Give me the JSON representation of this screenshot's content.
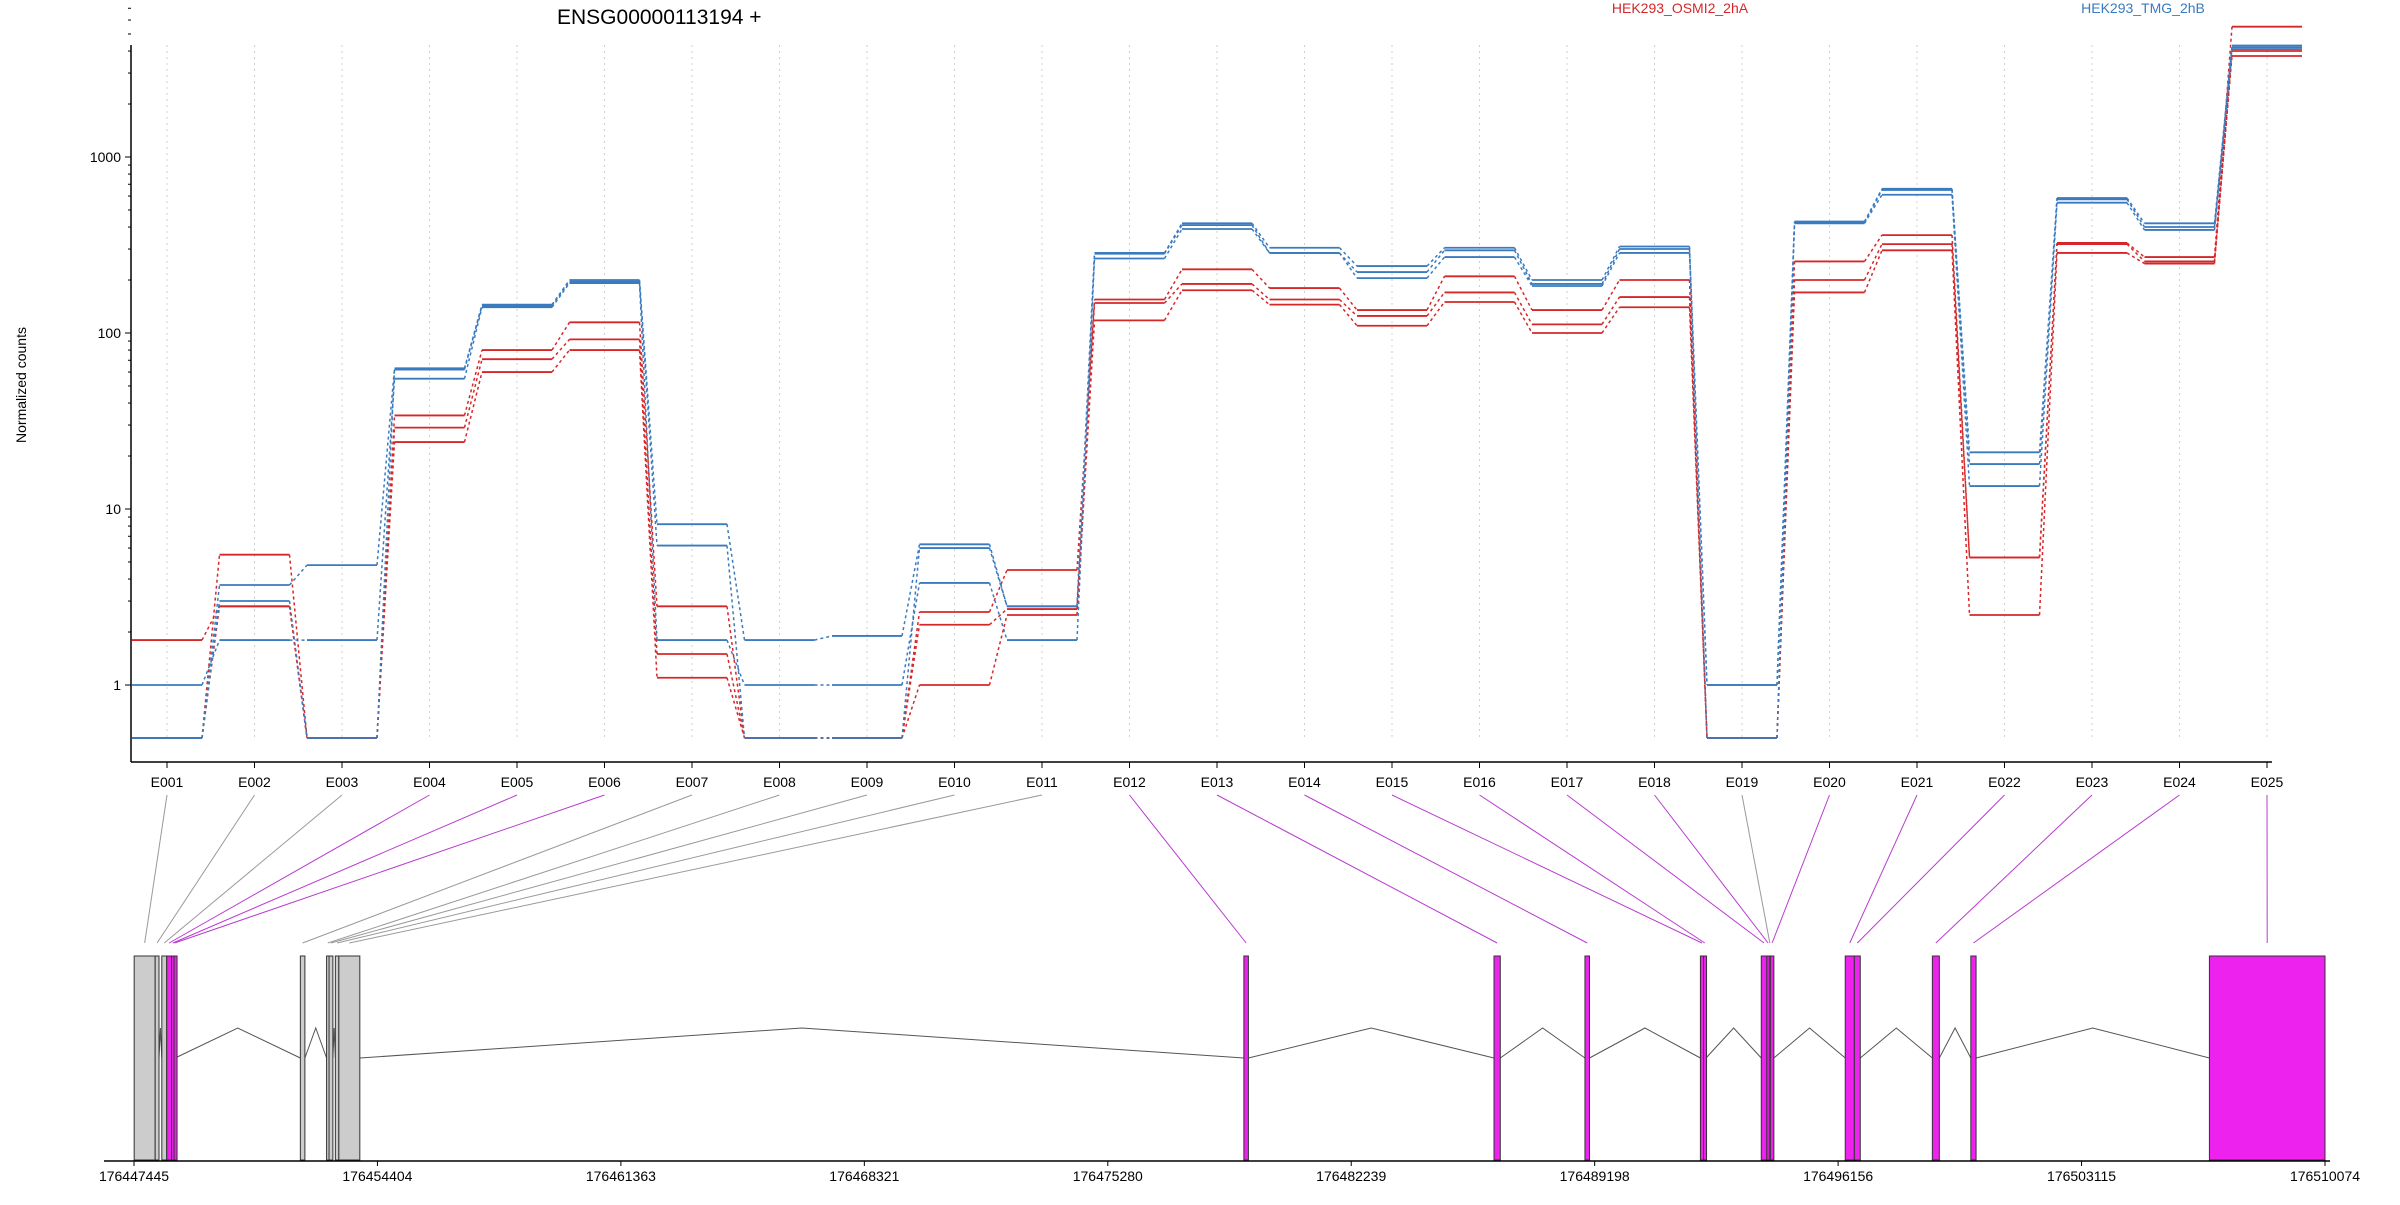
{
  "chart_data": {
    "type": "line",
    "title": "ENSG00000113194 +",
    "ylabel": "Normalized counts",
    "xlabel": "",
    "y_scale": "log",
    "y_ticks": [
      1,
      10,
      100,
      1000
    ],
    "y_tick_labels": [
      "1",
      "10",
      "100",
      "1000"
    ],
    "ylim": [
      0.5,
      8000
    ],
    "grid": "vertical dotted lines at each exon",
    "legend_position": "top-right",
    "categories": [
      "E001",
      "E002",
      "E003",
      "E004",
      "E005",
      "E006",
      "E007",
      "E008",
      "E009",
      "E010",
      "E011",
      "E012",
      "E013",
      "E014",
      "E015",
      "E016",
      "E017",
      "E018",
      "E019",
      "E020",
      "E021",
      "E022",
      "E023",
      "E024",
      "E025"
    ],
    "series": [
      {
        "group": "HEK293_OSMI2_2hA",
        "color": "#d62728",
        "values": [
          0.5,
          5.5,
          0.5,
          34,
          80,
          115,
          2.8,
          0.5,
          0.5,
          2.6,
          4.5,
          155,
          230,
          180,
          135,
          210,
          135,
          200,
          0.5,
          255,
          360,
          5.3,
          325,
          270,
          5500
        ]
      },
      {
        "group": "HEK293_OSMI2_2hA",
        "color": "#d62728",
        "values": [
          0.5,
          2.8,
          0.5,
          29,
          71,
          92,
          1.5,
          0.5,
          0.5,
          2.2,
          2.7,
          148,
          190,
          155,
          125,
          170,
          112,
          160,
          0.5,
          200,
          320,
          5.3,
          320,
          255,
          4000
        ]
      },
      {
        "group": "HEK293_OSMI2_2hA",
        "color": "#d62728",
        "values": [
          1.8,
          2.8,
          0.5,
          24,
          60,
          80,
          1.1,
          0.5,
          0.5,
          1.0,
          2.5,
          118,
          175,
          145,
          110,
          150,
          100,
          140,
          0.5,
          170,
          295,
          2.5,
          285,
          248,
          3750
        ]
      },
      {
        "group": "HEK293_TMG_2hB",
        "color": "#3a7bbf",
        "values": [
          0.5,
          3.7,
          4.8,
          63,
          145,
          200,
          8.2,
          1.8,
          1.9,
          6.3,
          2.8,
          285,
          420,
          305,
          240,
          305,
          200,
          310,
          1.0,
          430,
          660,
          21,
          585,
          420,
          4300
        ]
      },
      {
        "group": "HEK293_TMG_2hB",
        "color": "#3a7bbf",
        "values": [
          0.5,
          3.0,
          0.5,
          62,
          143,
          196,
          6.2,
          0.5,
          0.5,
          6.0,
          2.8,
          282,
          410,
          285,
          222,
          295,
          190,
          300,
          0.5,
          425,
          650,
          18,
          575,
          400,
          4200
        ]
      },
      {
        "group": "HEK293_TMG_2hB",
        "color": "#3a7bbf",
        "values": [
          1.0,
          1.8,
          1.8,
          55,
          140,
          192,
          1.8,
          1.0,
          1.0,
          3.8,
          1.8,
          265,
          390,
          285,
          205,
          270,
          185,
          285,
          1.0,
          420,
          610,
          13.5,
          550,
          385,
          4100
        ]
      }
    ],
    "legend": [
      {
        "label": "HEK293_OSMI2_2hA",
        "color": "#d62728"
      },
      {
        "label": "HEK293_TMG_2hB",
        "color": "#3a7bbf"
      }
    ],
    "gene_model": {
      "genomic_ticks": [
        "176447445",
        "176454404",
        "176461363",
        "176468321",
        "176475280",
        "176482239",
        "176489198",
        "176496156",
        "176503115",
        "176510074"
      ],
      "genomic_start": 176447445,
      "genomic_end": 176510074,
      "highlight_color": "#ee22ee",
      "intron_color": "#555555",
      "exons": [
        {
          "id": "E001",
          "start": 176447450,
          "end": 176448050,
          "highlight": false
        },
        {
          "id": "E002",
          "start": 176448050,
          "end": 176448160,
          "highlight": false
        },
        {
          "id": "E003",
          "start": 176448240,
          "end": 176448380,
          "highlight": false
        },
        {
          "id": "E004",
          "start": 176448380,
          "end": 176448520,
          "highlight": true
        },
        {
          "id": "E005",
          "start": 176448520,
          "end": 176448590,
          "highlight": true
        },
        {
          "id": "E006",
          "start": 176448590,
          "end": 176448620,
          "highlight": true
        },
        {
          "id": "E007",
          "start": 176452200,
          "end": 176452330,
          "highlight": false
        },
        {
          "id": "E008",
          "start": 176452950,
          "end": 176453020,
          "highlight": false
        },
        {
          "id": "E009",
          "start": 176453020,
          "end": 176453130,
          "highlight": false
        },
        {
          "id": "E010",
          "start": 176453200,
          "end": 176453300,
          "highlight": false
        },
        {
          "id": "E011",
          "start": 176453300,
          "end": 176453900,
          "highlight": false
        },
        {
          "id": "E012",
          "start": 176479170,
          "end": 176479300,
          "highlight": true
        },
        {
          "id": "E013",
          "start": 176486320,
          "end": 176486500,
          "highlight": true
        },
        {
          "id": "E014",
          "start": 176488920,
          "end": 176489050,
          "highlight": true
        },
        {
          "id": "E015",
          "start": 176492220,
          "end": 176492310,
          "highlight": true
        },
        {
          "id": "E016",
          "start": 176492310,
          "end": 176492380,
          "highlight": true
        },
        {
          "id": "E017",
          "start": 176493960,
          "end": 176494120,
          "highlight": true
        },
        {
          "id": "E018",
          "start": 176494120,
          "end": 176494190,
          "highlight": true
        },
        {
          "id": "E019",
          "start": 176494190,
          "end": 176494220,
          "highlight": false
        },
        {
          "id": "E020",
          "start": 176494220,
          "end": 176494320,
          "highlight": true
        },
        {
          "id": "E021",
          "start": 176496360,
          "end": 176496620,
          "highlight": true
        },
        {
          "id": "E022",
          "start": 176496620,
          "end": 176496790,
          "highlight": true
        },
        {
          "id": "E023",
          "start": 176498850,
          "end": 176499050,
          "highlight": true
        },
        {
          "id": "E024",
          "start": 176499950,
          "end": 176500100,
          "highlight": true
        },
        {
          "id": "E025",
          "start": 176506770,
          "end": 176510074,
          "highlight": true
        }
      ]
    }
  }
}
